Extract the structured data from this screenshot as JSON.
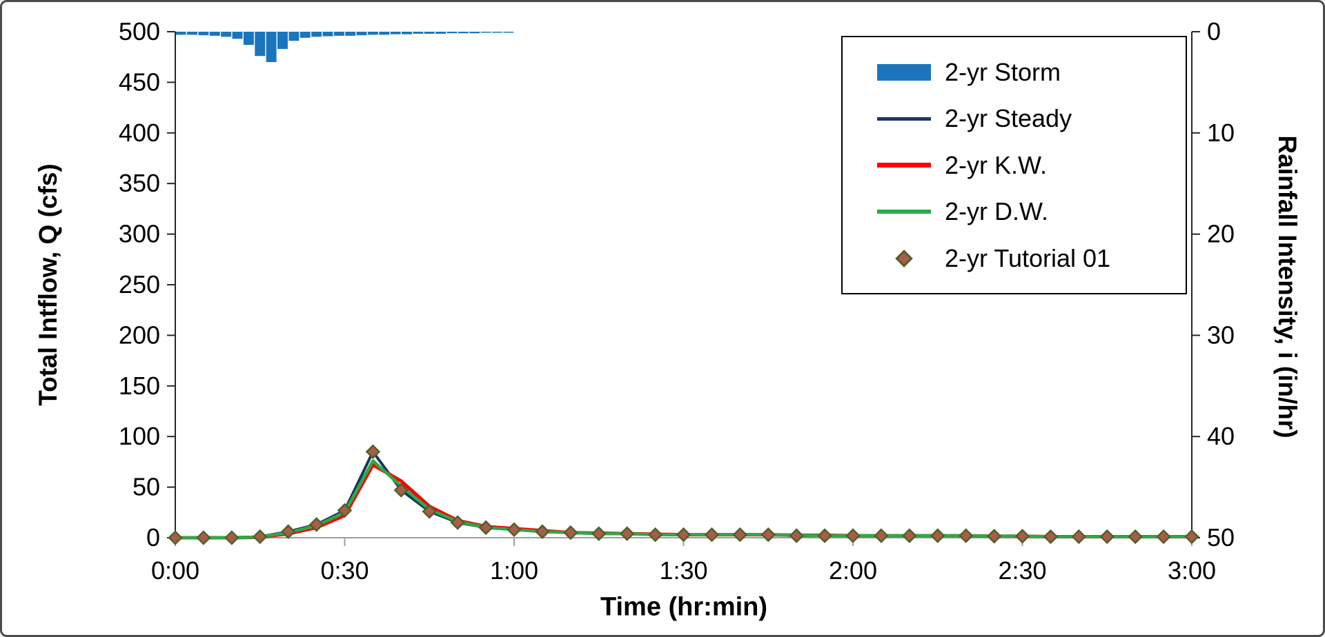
{
  "window": {
    "background": "#ffffff",
    "border_color": "#4a4a4a"
  },
  "chart_data": {
    "type": "line",
    "subtype": "combo-hydrograph-with-inverted-rainfall-bars",
    "title": "",
    "xlabel": "Time (hr:min)",
    "ylabel_left": "Total Intflow, Q (cfs)",
    "ylabel_right": "Rainfall Intensity, i (in/hr)",
    "grid": "off",
    "style": {
      "axis_color": "#262626",
      "baseline_color": "#9d9d9d",
      "tick_label_color": "#000000",
      "tick_font_size": 36
    },
    "x_axis": {
      "unit": "minutes",
      "min": 0,
      "max": 180,
      "tick_minutes": [
        0,
        30,
        60,
        90,
        120,
        150,
        180
      ],
      "tick_labels": [
        "0:00",
        "0:30",
        "1:00",
        "1:30",
        "2:00",
        "2:30",
        "3:00"
      ]
    },
    "y_left_axis": {
      "min": 0,
      "max": 500,
      "tick_values": [
        0,
        50,
        100,
        150,
        200,
        250,
        300,
        350,
        400,
        450,
        500
      ],
      "tick_labels": [
        "0",
        "50",
        "100",
        "150",
        "200",
        "250",
        "300",
        "350",
        "400",
        "450",
        "500"
      ]
    },
    "y_right_axis": {
      "min": 0,
      "max": 50,
      "inverted": true,
      "tick_values": [
        0,
        10,
        20,
        30,
        40,
        50
      ],
      "tick_labels": [
        "0",
        "10",
        "20",
        "30",
        "40",
        "50"
      ]
    },
    "rain": {
      "name": "2-yr Storm",
      "color": "#1B75BC",
      "axis": "right",
      "bar_width_minutes": 2,
      "t_minutes": [
        0,
        2,
        4,
        6,
        8,
        10,
        12,
        14,
        16,
        18,
        20,
        22,
        24,
        26,
        28,
        30,
        32,
        34,
        36,
        38,
        40,
        42,
        44,
        46,
        48,
        50,
        52,
        54,
        56,
        58
      ],
      "intensity_in_hr": [
        0.3,
        0.3,
        0.35,
        0.4,
        0.5,
        0.7,
        1.3,
        2.4,
        3.0,
        1.7,
        0.9,
        0.6,
        0.5,
        0.45,
        0.4,
        0.4,
        0.35,
        0.3,
        0.3,
        0.25,
        0.25,
        0.2,
        0.2,
        0.2,
        0.15,
        0.15,
        0.15,
        0.1,
        0.1,
        0.1
      ]
    },
    "t_minutes": [
      0,
      5,
      10,
      15,
      20,
      25,
      30,
      35,
      40,
      45,
      50,
      55,
      60,
      65,
      70,
      75,
      80,
      85,
      90,
      95,
      100,
      105,
      110,
      115,
      120,
      125,
      130,
      135,
      140,
      145,
      150,
      155,
      160,
      165,
      170,
      175,
      180
    ],
    "series": [
      {
        "name": "2-yr Steady",
        "kind": "line",
        "color": "#17375E",
        "stroke_width": 4,
        "axis": "left",
        "q_cfs": [
          0,
          0,
          0,
          1,
          6,
          13,
          27,
          85,
          47,
          26,
          15,
          10,
          8,
          6,
          5,
          4,
          4,
          3,
          3,
          3,
          3,
          3,
          2,
          2,
          2,
          2,
          2,
          2,
          2,
          1.5,
          1.5,
          1,
          1,
          1,
          1,
          1,
          1
        ]
      },
      {
        "name": "2-yr K.W.",
        "kind": "line",
        "color": "#FF0000",
        "stroke_width": 5,
        "axis": "left",
        "q_cfs": [
          0,
          0,
          0,
          0.5,
          4,
          10,
          22,
          72,
          56,
          31,
          17,
          11,
          9,
          7,
          5,
          4.5,
          4,
          3.5,
          3,
          3,
          3,
          3,
          2.5,
          2.5,
          2,
          2,
          2,
          2,
          2,
          1.5,
          1.5,
          1,
          1,
          1,
          1,
          1,
          1
        ]
      },
      {
        "name": "2-yr D.W.",
        "kind": "line",
        "color": "#2BAA4A",
        "stroke_width": 4.5,
        "axis": "left",
        "q_cfs": [
          0,
          0,
          0,
          0.8,
          5,
          12,
          25,
          76,
          51,
          28,
          16,
          10,
          8,
          6,
          5,
          4,
          4,
          3,
          3,
          3,
          3,
          3,
          2.5,
          2,
          2,
          2,
          2,
          2,
          2,
          1.5,
          1.5,
          1,
          1,
          1,
          1,
          1,
          1
        ]
      },
      {
        "name": "2-yr Tutorial 01",
        "kind": "scatter",
        "marker": "diamond",
        "fill": "#A85C4A",
        "stroke": "#4F6228",
        "marker_size": 18,
        "axis": "left",
        "q_cfs": [
          0,
          0,
          0,
          1,
          6,
          13,
          27,
          85,
          47,
          26,
          15,
          10,
          8,
          6,
          5,
          4,
          4,
          3,
          3,
          3,
          3,
          3,
          2,
          2,
          2,
          2,
          2,
          2,
          2,
          1.5,
          1.5,
          1,
          1,
          1,
          1,
          1,
          1
        ]
      }
    ],
    "legend": {
      "position": "top-right",
      "entries": [
        {
          "label": "2-yr Storm",
          "swatch": "bar"
        },
        {
          "label": "2-yr Steady",
          "swatch": "line"
        },
        {
          "label": "2-yr K.W.",
          "swatch": "line"
        },
        {
          "label": "2-yr D.W.",
          "swatch": "line"
        },
        {
          "label": "2-yr Tutorial 01",
          "swatch": "diamond"
        }
      ]
    }
  }
}
